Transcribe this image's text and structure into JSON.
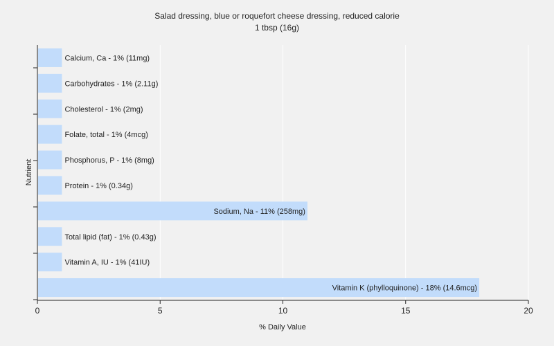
{
  "chart_data": {
    "type": "bar",
    "orientation": "horizontal",
    "title": "Salad dressing, blue or roquefort cheese dressing, reduced calorie",
    "subtitle": "1 tbsp (16g)",
    "xlabel": "% Daily Value",
    "ylabel": "Nutrient",
    "xlim": [
      0,
      20
    ],
    "xticks": [
      "0",
      "5",
      "10",
      "15",
      "20"
    ],
    "grid": true,
    "legend": "none",
    "bar_color": "#c2dcfb",
    "categories": [
      "Calcium, Ca",
      "Carbohydrates",
      "Cholesterol",
      "Folate, total",
      "Phosphorus, P",
      "Protein",
      "Sodium, Na",
      "Total lipid (fat)",
      "Vitamin A, IU",
      "Vitamin K (phylloquinone)"
    ],
    "values": [
      1,
      1,
      1,
      1,
      1,
      1,
      11,
      1,
      1,
      18
    ],
    "labels": [
      "Calcium, Ca - 1% (11mg)",
      "Carbohydrates - 1% (2.11g)",
      "Cholesterol - 1% (2mg)",
      "Folate, total - 1% (4mcg)",
      "Phosphorus, P - 1% (8mg)",
      "Protein - 1% (0.34g)",
      "Sodium, Na - 11% (258mg)",
      "Total lipid (fat) - 1% (0.43g)",
      "Vitamin A, IU - 1% (41IU)",
      "Vitamin K (phylloquinone) - 18% (14.6mcg)"
    ]
  }
}
